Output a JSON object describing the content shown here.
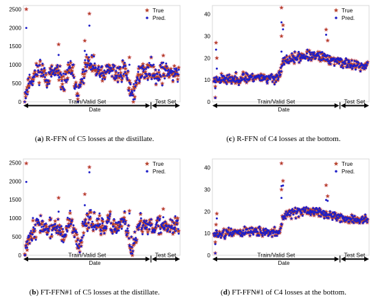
{
  "figure": {
    "colors": {
      "true": "#b5402a",
      "pred": "#1f1fc8",
      "halo": "#f6c6dc",
      "frame": "#cfcfcf"
    },
    "captions": [
      {
        "letter": "a",
        "text": " R-FFN of C5 losses at the distillate."
      },
      {
        "letter": "c",
        "text": " R-FFN of C4 losses at the bottom."
      },
      {
        "letter": "b",
        "text": " FT-FFN#1 of C5 losses at the distillate."
      },
      {
        "letter": "d",
        "text": " FT-FFN#1 of C4 losses at the bottom."
      }
    ]
  },
  "chart_data": [
    {
      "id": "a",
      "type": "scatter",
      "xlabel": "Date",
      "segments": [
        "Train/Valid Set",
        "Test Set"
      ],
      "ylim": [
        0,
        2600
      ],
      "yticks": [
        0,
        500,
        1000,
        1500,
        2000,
        2500
      ],
      "legend": [
        "True",
        "Pred."
      ],
      "legend_position": "top-right",
      "n_points": 320,
      "split_fraction": 0.82,
      "series": [
        {
          "name": "True",
          "marker": "star"
        },
        {
          "name": "Pred.",
          "marker": "dot"
        }
      ],
      "trend": [
        [
          0,
          150
        ],
        [
          0.03,
          550
        ],
        [
          0.06,
          700
        ],
        [
          0.1,
          900
        ],
        [
          0.15,
          650
        ],
        [
          0.2,
          800
        ],
        [
          0.25,
          500
        ],
        [
          0.3,
          900
        ],
        [
          0.35,
          200
        ],
        [
          0.4,
          1050
        ],
        [
          0.45,
          900
        ],
        [
          0.5,
          700
        ],
        [
          0.55,
          850
        ],
        [
          0.6,
          750
        ],
        [
          0.65,
          900
        ],
        [
          0.7,
          150
        ],
        [
          0.75,
          800
        ],
        [
          0.8,
          850
        ],
        [
          0.85,
          800
        ],
        [
          0.9,
          780
        ],
        [
          0.95,
          820
        ],
        [
          1,
          800
        ]
      ],
      "spikes": [
        [
          0.01,
          2500
        ],
        [
          0.42,
          2380
        ],
        [
          0.39,
          1650
        ],
        [
          0.22,
          1550
        ],
        [
          0.68,
          1200
        ],
        [
          0.9,
          1250
        ]
      ],
      "spread": 260
    },
    {
      "id": "c",
      "type": "scatter",
      "xlabel": "Date",
      "segments": [
        "Train/Valid Set",
        "Test Set"
      ],
      "ylim": [
        0,
        44
      ],
      "yticks": [
        0,
        10,
        20,
        30,
        40
      ],
      "legend": [
        "True",
        "Pred."
      ],
      "legend_position": "top-right",
      "n_points": 320,
      "split_fraction": 0.82,
      "series": [
        {
          "name": "True",
          "marker": "star"
        },
        {
          "name": "Pred.",
          "marker": "dot"
        }
      ],
      "trend": [
        [
          0,
          10
        ],
        [
          0.05,
          11
        ],
        [
          0.1,
          10
        ],
        [
          0.2,
          11
        ],
        [
          0.3,
          11.5
        ],
        [
          0.38,
          10.5
        ],
        [
          0.43,
          12
        ],
        [
          0.45,
          18
        ],
        [
          0.5,
          19.5
        ],
        [
          0.6,
          21
        ],
        [
          0.7,
          20.5
        ],
        [
          0.78,
          19
        ],
        [
          0.82,
          18.5
        ],
        [
          0.88,
          17
        ],
        [
          0.95,
          16.5
        ],
        [
          1,
          16.5
        ]
      ],
      "spikes": [
        [
          0.44,
          43
        ],
        [
          0.45,
          35
        ],
        [
          0.44,
          30
        ],
        [
          0.73,
          33
        ],
        [
          0.74,
          28
        ],
        [
          0.02,
          20
        ],
        [
          0.015,
          27
        ],
        [
          0.01,
          2
        ],
        [
          0.01,
          7
        ]
      ],
      "spread": 2.2
    },
    {
      "id": "b",
      "type": "scatter",
      "xlabel": "Date",
      "segments": [
        "Train/Valid Set",
        "Test Set"
      ],
      "ylim": [
        0,
        2600
      ],
      "yticks": [
        0,
        500,
        1000,
        1500,
        2000,
        2500
      ],
      "legend": [
        "True",
        "Pred."
      ],
      "legend_position": "top-right",
      "n_points": 320,
      "split_fraction": 0.82,
      "series": [
        {
          "name": "True",
          "marker": "star"
        },
        {
          "name": "Pred.",
          "marker": "dot"
        }
      ],
      "trend": [
        [
          0,
          150
        ],
        [
          0.03,
          550
        ],
        [
          0.06,
          700
        ],
        [
          0.1,
          900
        ],
        [
          0.15,
          650
        ],
        [
          0.2,
          800
        ],
        [
          0.25,
          500
        ],
        [
          0.3,
          900
        ],
        [
          0.35,
          200
        ],
        [
          0.4,
          1050
        ],
        [
          0.45,
          900
        ],
        [
          0.5,
          700
        ],
        [
          0.55,
          850
        ],
        [
          0.6,
          750
        ],
        [
          0.65,
          900
        ],
        [
          0.7,
          150
        ],
        [
          0.75,
          800
        ],
        [
          0.8,
          850
        ],
        [
          0.85,
          800
        ],
        [
          0.9,
          780
        ],
        [
          0.95,
          820
        ],
        [
          1,
          800
        ]
      ],
      "spikes": [
        [
          0.01,
          2480
        ],
        [
          0.42,
          2380
        ],
        [
          0.39,
          1650
        ],
        [
          0.22,
          1550
        ],
        [
          0.68,
          1200
        ],
        [
          0.9,
          1250
        ]
      ],
      "spread": 260
    },
    {
      "id": "d",
      "type": "scatter",
      "xlabel": "Date",
      "segments": [
        "Train/Valid Set",
        "Test Set"
      ],
      "ylim": [
        0,
        44
      ],
      "yticks": [
        0,
        10,
        20,
        30,
        40
      ],
      "legend": [
        "True",
        "Pred."
      ],
      "legend_position": "top-right",
      "n_points": 320,
      "split_fraction": 0.82,
      "series": [
        {
          "name": "True",
          "marker": "star"
        },
        {
          "name": "Pred.",
          "marker": "dot"
        }
      ],
      "trend": [
        [
          0,
          9
        ],
        [
          0.05,
          10
        ],
        [
          0.1,
          10
        ],
        [
          0.2,
          11
        ],
        [
          0.3,
          11
        ],
        [
          0.38,
          10
        ],
        [
          0.43,
          11
        ],
        [
          0.45,
          18
        ],
        [
          0.5,
          19
        ],
        [
          0.6,
          20
        ],
        [
          0.7,
          19.5
        ],
        [
          0.78,
          18
        ],
        [
          0.82,
          17.5
        ],
        [
          0.88,
          16.5
        ],
        [
          0.95,
          16
        ],
        [
          1,
          16
        ]
      ],
      "spikes": [
        [
          0.44,
          42
        ],
        [
          0.45,
          34
        ],
        [
          0.44,
          30
        ],
        [
          0.73,
          32
        ],
        [
          0.74,
          27
        ],
        [
          0.02,
          19
        ],
        [
          0.015,
          14
        ],
        [
          0.01,
          1
        ],
        [
          0.01,
          6
        ]
      ],
      "spread": 2.0
    }
  ]
}
